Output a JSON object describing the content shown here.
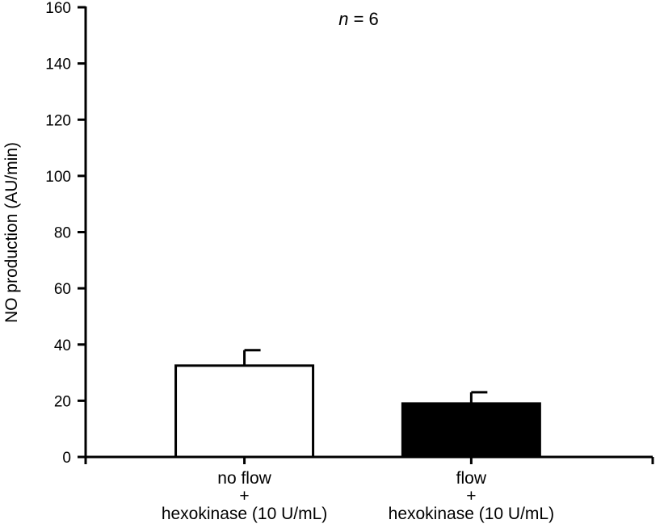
{
  "chart_data": {
    "type": "bar",
    "title": "",
    "ylabel": "NO production (AU/min)",
    "xlabel": "",
    "ylim": [
      0,
      160
    ],
    "yticks": [
      0,
      20,
      40,
      60,
      80,
      100,
      120,
      140,
      160
    ],
    "grid": false,
    "categories": [
      {
        "lines": [
          "no flow",
          "+",
          "hexokinase (10 U/mL)"
        ]
      },
      {
        "lines": [
          "flow",
          "+",
          "hexokinase (10 U/mL)"
        ]
      }
    ],
    "values": [
      32.5,
      19
    ],
    "errors": [
      5.5,
      4
    ],
    "bar_fill": [
      "#ffffff",
      "#000000"
    ],
    "bar_stroke": "#000000",
    "annotation": {
      "italic": "n",
      "rest": " = 6"
    }
  }
}
